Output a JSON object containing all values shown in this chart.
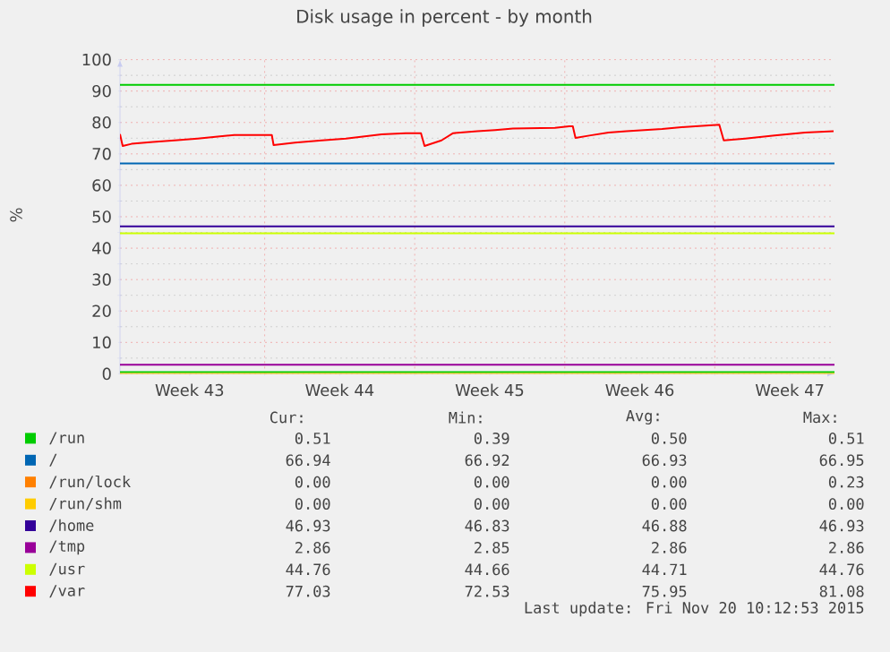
{
  "chart_data": {
    "type": "line",
    "title": "Disk usage in percent - by month",
    "ylabel": "%",
    "xlim": [
      "2015-10-19T06:00",
      "2015-11-21T14:00"
    ],
    "ylim": [
      0,
      100
    ],
    "xticks": [
      {
        "value": "2015-10-22T12:00",
        "label": "Week 43"
      },
      {
        "value": "2015-10-26T00:00",
        "label": null
      },
      {
        "value": "2015-10-29T12:00",
        "label": "Week 44"
      },
      {
        "value": "2015-11-02T00:00",
        "label": null
      },
      {
        "value": "2015-11-05T12:00",
        "label": "Week 45"
      },
      {
        "value": "2015-11-09T00:00",
        "label": null
      },
      {
        "value": "2015-11-12T12:00",
        "label": "Week 46"
      },
      {
        "value": "2015-11-16T00:00",
        "label": null
      },
      {
        "value": "2015-11-19T12:00",
        "label": "Week 47"
      }
    ],
    "yticks": [
      0,
      10,
      20,
      30,
      40,
      50,
      60,
      70,
      80,
      90,
      100
    ],
    "grid": true,
    "legend": "bottom",
    "marker": "none",
    "line_style": "solid",
    "ref_lines": [
      {
        "axis": "y",
        "value": 92,
        "color": "#00cc00"
      }
    ],
    "series": [
      {
        "name": "/run",
        "color": "#00cc00",
        "x": [
          "2015-10-19T06:00",
          "2015-11-21T14:00"
        ],
        "values": [
          0.51,
          0.51
        ]
      },
      {
        "name": "/",
        "color": "#0066b3",
        "x": [
          "2015-10-19T06:00",
          "2015-11-21T14:00"
        ],
        "values": [
          66.94,
          66.94
        ]
      },
      {
        "name": "/run/lock",
        "color": "#ff8000",
        "values": [
          null,
          null
        ]
      },
      {
        "name": "/run/shm",
        "color": "#ffcc00",
        "x": [
          "2015-10-19T06:00",
          "2015-11-21T14:00"
        ],
        "values": [
          0,
          0
        ]
      },
      {
        "name": "/home",
        "color": "#330099",
        "x": [
          "2015-10-19T06:00",
          "2015-11-21T14:00"
        ],
        "values": [
          46.93,
          46.93
        ]
      },
      {
        "name": "/tmp",
        "color": "#990099",
        "x": [
          "2015-10-19T06:00",
          "2015-11-21T14:00"
        ],
        "values": [
          2.86,
          2.86
        ]
      },
      {
        "name": "/usr",
        "color": "#ccff00",
        "x": [
          "2015-10-19T06:00",
          "2015-11-21T14:00"
        ],
        "values": [
          44.76,
          44.76
        ]
      },
      {
        "name": "/var",
        "color": "#ff0000",
        "x": [
          "2015-10-19T06:00",
          "2015-10-19T09:00",
          "2015-10-19T19:00",
          "2015-10-20T19:00",
          "2015-10-21T19:00",
          "2015-10-22T21:00",
          "2015-10-23T22:00",
          "2015-10-24T14:00",
          "2015-10-26T08:00",
          "2015-10-26T10:00",
          "2015-10-27T10:00",
          "2015-10-28T16:00",
          "2015-10-29T19:00",
          "2015-10-31T11:00",
          "2015-11-01T14:00",
          "2015-11-02T07:00",
          "2015-11-02T11:00",
          "2015-11-03T06:00",
          "2015-11-03T19:00",
          "2015-11-04T22:00",
          "2015-11-05T18:00",
          "2015-11-06T14:00",
          "2015-11-08T13:00",
          "2015-11-09T05:00",
          "2015-11-09T09:00",
          "2015-11-09T12:00",
          "2015-11-10T05:00",
          "2015-11-11T01:00",
          "2015-11-11T21:00",
          "2015-11-13T13:00",
          "2015-11-14T15:00",
          "2015-11-16T05:00",
          "2015-11-16T10:00",
          "2015-11-17T10:00",
          "2015-11-18T19:00",
          "2015-11-20T05:00",
          "2015-11-21T13:00"
        ],
        "values": [
          76.3,
          72.5,
          73.2,
          73.8,
          74.3,
          74.9,
          75.6,
          76.0,
          76.0,
          72.8,
          73.6,
          74.3,
          74.9,
          76.2,
          76.6,
          76.6,
          72.5,
          74.3,
          76.6,
          77.2,
          77.6,
          78.1,
          78.3,
          78.8,
          78.8,
          75.1,
          75.9,
          76.8,
          77.2,
          77.9,
          78.6,
          79.3,
          74.3,
          74.9,
          75.9,
          76.8,
          77.2
        ]
      }
    ],
    "annotations": [
      "Cur:",
      "Min:",
      "Avg:",
      "Max:",
      "0.51",
      "0.39",
      "0.50",
      "0.51",
      "66.94",
      "66.92",
      "66.93",
      "66.95",
      "0.00",
      "0.00",
      "0.00",
      "0.23",
      "0.00",
      "0.00",
      "0.00",
      "0.00",
      "46.93",
      "46.83",
      "46.88",
      "46.93",
      "2.86",
      "2.85",
      "2.86",
      "2.86",
      "44.76",
      "44.66",
      "44.71",
      "44.76",
      "77.03",
      "72.53",
      "75.95",
      "81.08",
      "Last update: Fri Nov 20 10:12:53 2015"
    ]
  }
}
